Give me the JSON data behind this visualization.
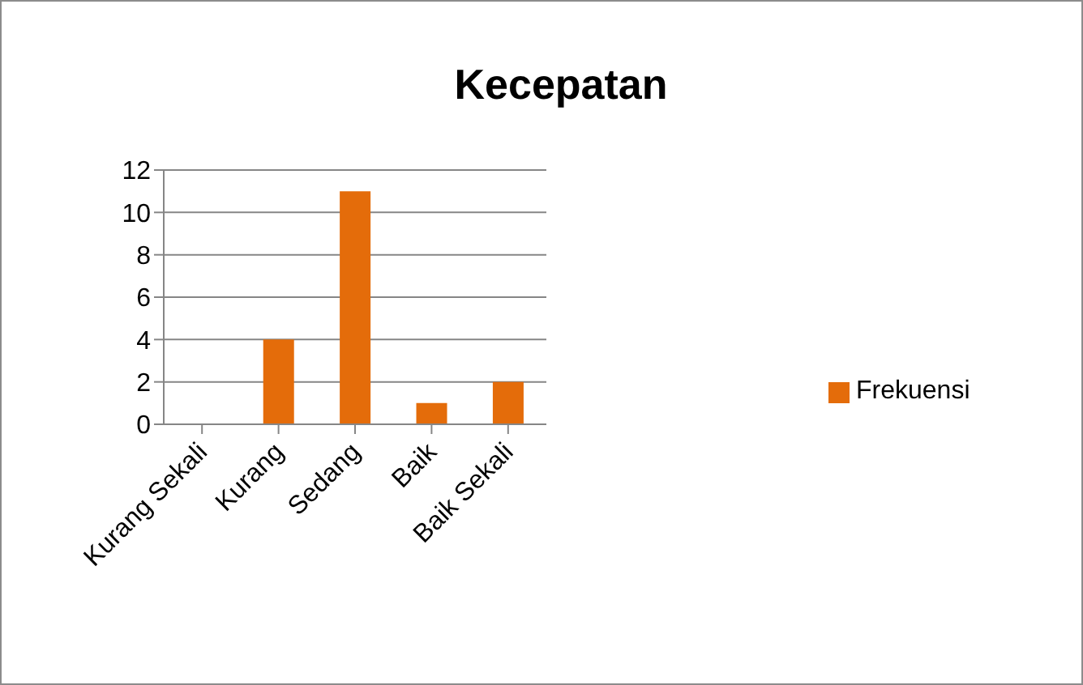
{
  "chart_data": {
    "type": "bar",
    "title": "Kecepatan",
    "categories": [
      "Kurang Sekali",
      "Kurang",
      "Sedang",
      "Baik",
      "Baik Sekali"
    ],
    "series": [
      {
        "name": "Frekuensi",
        "color": "#e46c0a",
        "values": [
          0,
          4,
          11,
          1,
          2
        ]
      }
    ],
    "ylim": [
      0,
      12
    ],
    "yticks": [
      0,
      2,
      4,
      6,
      8,
      10,
      12
    ],
    "grid": "y",
    "legend": "right"
  }
}
